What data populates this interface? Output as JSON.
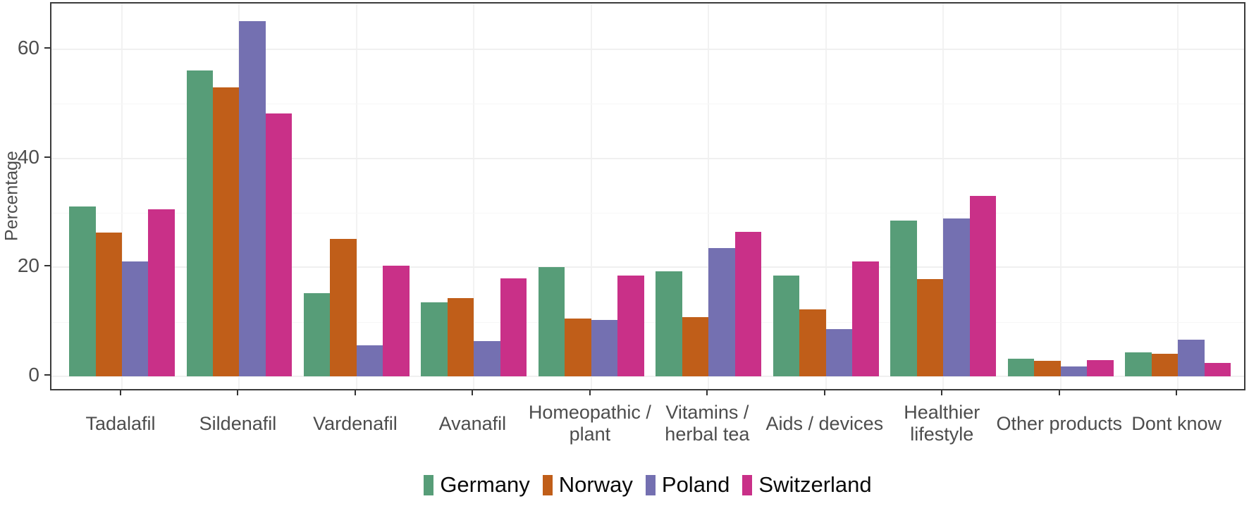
{
  "chart_data": {
    "type": "bar",
    "title": "",
    "xlabel": "",
    "ylabel": "Percentage",
    "ylim": [
      0,
      68.4
    ],
    "yticks": [
      0,
      20,
      40,
      60
    ],
    "grid": "very faint horizontal major (0/20/40/60) and minor (10/30/50) lines; faint vertical major line at each category",
    "legend_position": "bottom-center",
    "categories": [
      "Tadalafil",
      "Sildenafil",
      "Vardenafil",
      "Avanafil",
      "Homeopathic / plant",
      "Vitamins / herbal tea",
      "Aids / devices",
      "Healthier lifestyle",
      "Other products",
      "Dont know"
    ],
    "category_label_lines": [
      [
        "Tadalafil"
      ],
      [
        "Sildenafil"
      ],
      [
        "Vardenafil"
      ],
      [
        "Avanafil"
      ],
      [
        "Homeopathic /",
        "plant"
      ],
      [
        "Vitamins /",
        "herbal tea"
      ],
      [
        "Aids / devices"
      ],
      [
        "Healthier",
        "lifestyle"
      ],
      [
        "Other products"
      ],
      [
        "Dont know"
      ]
    ],
    "series": [
      {
        "name": "Germany",
        "color": "#579d78",
        "values": [
          31.1,
          56.1,
          15.3,
          13.6,
          20.0,
          19.3,
          18.5,
          28.6,
          3.2,
          4.4
        ]
      },
      {
        "name": "Norway",
        "color": "#c05e19",
        "values": [
          26.4,
          53.0,
          25.2,
          14.4,
          10.6,
          10.9,
          12.3,
          17.9,
          2.8,
          4.1
        ]
      },
      {
        "name": "Poland",
        "color": "#7470b1",
        "values": [
          21.1,
          65.1,
          5.7,
          6.5,
          10.3,
          23.5,
          8.7,
          29.0,
          1.8,
          6.7
        ]
      },
      {
        "name": "Switzerland",
        "color": "#c93088",
        "values": [
          30.6,
          48.2,
          20.3,
          18.0,
          18.5,
          26.5,
          21.1,
          33.1,
          3.0,
          2.5
        ]
      }
    ],
    "axis_colors": {
      "tick_label": "#4d4d4d",
      "axis_title": "#4d4d4d",
      "panel_border": "#3b3b3b",
      "legend_text": "#0a0a0a"
    }
  }
}
